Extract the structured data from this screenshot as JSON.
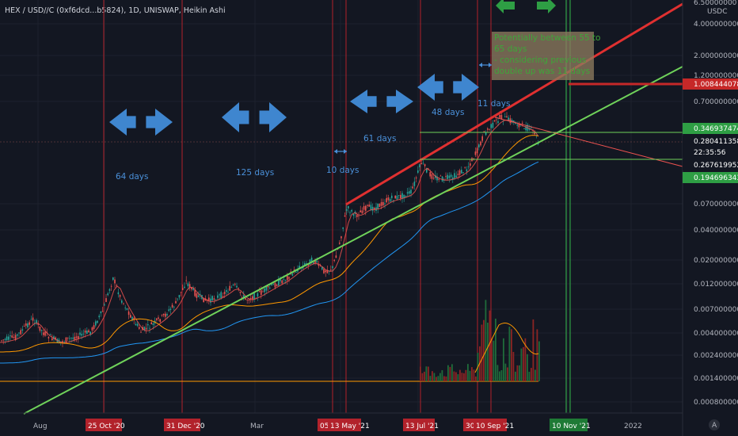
{
  "header": {
    "title": "HEX / USD//C (0xf6dcd...b5824), 1D, UNISWAP, Heikin Ashi"
  },
  "price_axis": {
    "currency": "USDC",
    "top_label": "6.50000000",
    "ticks": [
      "4.0000000000",
      "2.0000000000",
      "1.2000000000",
      "0.7000000000",
      "0.0700000000",
      "0.0400000000",
      "0.0200000000",
      "0.0120000000",
      "0.0070000000",
      "0.0040000000",
      "0.0024000000",
      "0.0014000000",
      "0.0008000000"
    ],
    "tags": [
      {
        "text": "1.0084440789",
        "kind": "red"
      },
      {
        "text": "0.3469374747",
        "kind": "green"
      },
      {
        "text": "0.2804113581",
        "kind": "redtext"
      },
      {
        "text": "22:35:56",
        "kind": "redtext"
      },
      {
        "text": "0.2676199520",
        "kind": "plain"
      },
      {
        "text": "0.1946963432",
        "kind": "green"
      }
    ],
    "log_scale": true,
    "auto_button": "A"
  },
  "time_axis": {
    "plain_ticks": [
      {
        "label": "Aug"
      },
      {
        "label": "Mar"
      },
      {
        "label": "2022"
      }
    ],
    "marked_ticks": [
      {
        "label": "25 Oct '20",
        "color": "#b2222b"
      },
      {
        "label": "31 Dec '20",
        "color": "#b2222b"
      },
      {
        "label": "05",
        "color": "#b2222b"
      },
      {
        "label": "13 May '21",
        "color": "#b2222b"
      },
      {
        "label": "13 Jul '21",
        "color": "#b2222b"
      },
      {
        "label": "30",
        "color": "#b2222b"
      },
      {
        "label": "10 Sep '21",
        "color": "#b2222b"
      },
      {
        "label": "10 Nov '21",
        "color": "#1e7a35"
      }
    ]
  },
  "annotations": {
    "intervals": [
      "64 days",
      "125 days",
      "10 days",
      "61 days",
      "48 days",
      "11 days"
    ],
    "note": {
      "lines": [
        "Potentially between 55 to",
        "65 days",
        "- considering previous",
        "double up was 11 days"
      ]
    }
  },
  "chart_data": {
    "type": "candlestick",
    "series": "Heikin Ashi",
    "y_scale": "log",
    "ylim": [
      0.0008,
      6.5
    ],
    "colors": {
      "up": "#26a69a",
      "down": "#ef5350",
      "ma_fast": "#ef5350",
      "ma_mid": "#ff9800",
      "ma_slow": "#2196f3",
      "trend_red": "#e03030",
      "trend_green": "#6fd25a",
      "volume_ma": "#ff9800"
    }
  }
}
